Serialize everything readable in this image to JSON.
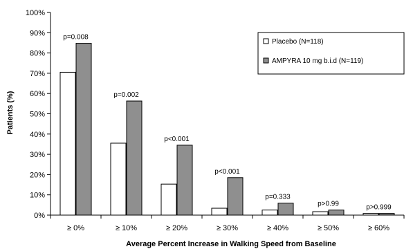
{
  "chart_data": {
    "type": "bar",
    "categories": [
      "≥ 0%",
      "≥ 10%",
      "≥ 20%",
      "≥ 30%",
      "≥ 40%",
      "≥ 50%",
      "≥ 60%"
    ],
    "series": [
      {
        "name": "Placebo (N=118)",
        "values": [
          70.5,
          35.5,
          15.3,
          3.4,
          2.5,
          1.7,
          0.8
        ],
        "color": "#ffffff"
      },
      {
        "name": "AMPYRA 10 mg b.i.d (N=119)",
        "values": [
          84.8,
          56.3,
          34.5,
          18.5,
          5.9,
          2.5,
          0.8
        ],
        "color": "#8f8f8f"
      }
    ],
    "annotations": [
      "p=0.008",
      "p=0.002",
      "p<0.001",
      "p<0.001",
      "p=0.333",
      "p>0.99",
      "p>0.999"
    ],
    "xlabel": "Average Percent Increase in Walking Speed from Baseline",
    "ylabel": "Patients (%)",
    "ylim": [
      0,
      100
    ],
    "yticks": [
      "0%",
      "10%",
      "20%",
      "30%",
      "40%",
      "50%",
      "60%",
      "70%",
      "80%",
      "90%",
      "100%"
    ],
    "grid": false,
    "legend_position": "top-right"
  }
}
